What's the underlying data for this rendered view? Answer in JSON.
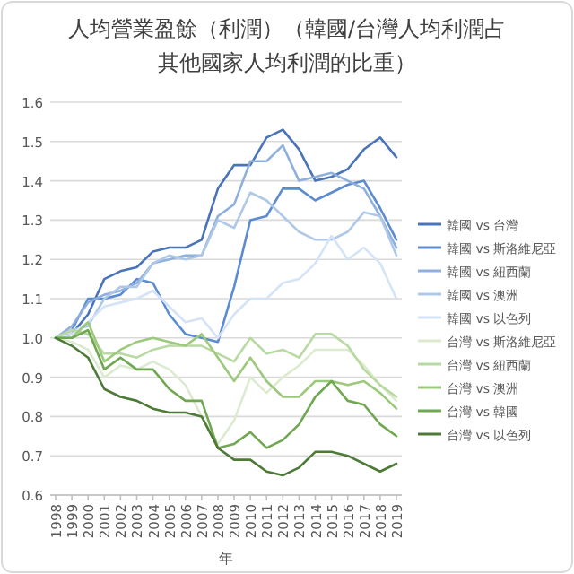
{
  "chart_data": {
    "type": "line",
    "title": "人均營業盈餘（利潤）（韓國/台灣人均利潤占其他國家人均利潤的比重）",
    "xlabel": "年",
    "categories": [
      "1998",
      "1999",
      "2000",
      "2001",
      "2002",
      "2003",
      "2004",
      "2005",
      "2006",
      "2007",
      "2008",
      "2009",
      "2010",
      "2011",
      "2012",
      "2013",
      "2014",
      "2015",
      "2016",
      "2017",
      "2018",
      "2019"
    ],
    "ylim": [
      0.6,
      1.6
    ],
    "yticks": [
      0.6,
      0.7,
      0.8,
      0.9,
      {
        "value": 1,
        "label": "1.0"
      },
      1.1,
      1.2,
      1.3,
      1.4,
      1.5,
      1.6
    ],
    "grid": "y",
    "legend": "right",
    "marker": "none",
    "line_style": "solid",
    "series": [
      {
        "name": "韓國 vs 台灣",
        "color": "#4a74b8",
        "values": [
          1.0,
          1.01,
          1.06,
          1.15,
          1.17,
          1.18,
          1.22,
          1.23,
          1.23,
          1.25,
          1.38,
          1.44,
          1.44,
          1.51,
          1.53,
          1.48,
          1.4,
          1.41,
          1.43,
          1.48,
          1.51,
          1.46
        ]
      },
      {
        "name": "韓國 vs 斯洛維尼亞",
        "color": "#5b8bd0",
        "values": [
          1.0,
          1.02,
          1.1,
          1.1,
          1.11,
          1.15,
          1.14,
          1.06,
          1.01,
          1.0,
          0.99,
          1.13,
          1.3,
          1.31,
          1.38,
          1.38,
          1.35,
          1.37,
          1.39,
          1.4,
          1.33,
          1.25
        ]
      },
      {
        "name": "韓國 vs 紐西蘭",
        "color": "#8fb0dc",
        "values": [
          1.0,
          1.03,
          1.09,
          1.11,
          1.12,
          1.14,
          1.19,
          1.2,
          1.21,
          1.21,
          1.31,
          1.34,
          1.45,
          1.45,
          1.49,
          1.4,
          1.41,
          1.42,
          1.4,
          1.38,
          1.31,
          1.23
        ]
      },
      {
        "name": "韓國 vs 澳洲",
        "color": "#afc8e8",
        "values": [
          1.0,
          1.02,
          1.03,
          1.1,
          1.13,
          1.13,
          1.19,
          1.21,
          1.2,
          1.21,
          1.3,
          1.28,
          1.37,
          1.35,
          1.31,
          1.27,
          1.25,
          1.25,
          1.27,
          1.32,
          1.31,
          1.21
        ]
      },
      {
        "name": "韓國 vs 以色列",
        "color": "#d4e3f5",
        "values": [
          1.0,
          1.01,
          1.04,
          1.08,
          1.09,
          1.1,
          1.12,
          1.08,
          1.04,
          1.05,
          1.0,
          1.06,
          1.1,
          1.1,
          1.14,
          1.15,
          1.19,
          1.26,
          1.2,
          1.23,
          1.19,
          1.1
        ]
      },
      {
        "name": "台灣 vs 斯洛維尼亞",
        "color": "#dcebcf",
        "values": [
          1.0,
          0.99,
          0.97,
          0.9,
          0.93,
          0.92,
          0.94,
          0.92,
          0.88,
          0.8,
          0.73,
          0.79,
          0.9,
          0.86,
          0.9,
          0.93,
          0.97,
          0.97,
          0.97,
          0.93,
          0.88,
          0.84
        ]
      },
      {
        "name": "台灣 vs 紐西蘭",
        "color": "#b9d9a2",
        "values": [
          1.0,
          1.02,
          1.01,
          0.96,
          0.96,
          0.95,
          0.97,
          0.98,
          0.98,
          0.98,
          0.96,
          0.94,
          1.0,
          0.96,
          0.97,
          0.95,
          1.01,
          1.01,
          0.98,
          0.92,
          0.88,
          0.85
        ]
      },
      {
        "name": "台灣 vs 澳洲",
        "color": "#9cc97c",
        "values": [
          1.0,
          1.0,
          1.04,
          0.94,
          0.97,
          0.99,
          1.0,
          0.99,
          0.98,
          1.01,
          0.95,
          0.89,
          0.95,
          0.89,
          0.85,
          0.85,
          0.89,
          0.89,
          0.88,
          0.89,
          0.86,
          0.82
        ]
      },
      {
        "name": "台灣 vs 韓國",
        "color": "#6fa851",
        "values": [
          1.0,
          1.0,
          1.02,
          0.92,
          0.95,
          0.92,
          0.92,
          0.87,
          0.84,
          0.84,
          0.72,
          0.73,
          0.76,
          0.72,
          0.74,
          0.78,
          0.85,
          0.89,
          0.84,
          0.83,
          0.78,
          0.75
        ]
      },
      {
        "name": "台灣 vs 以色列",
        "color": "#4e7a38",
        "values": [
          1.0,
          0.98,
          0.95,
          0.87,
          0.85,
          0.84,
          0.82,
          0.81,
          0.81,
          0.8,
          0.72,
          0.69,
          0.69,
          0.66,
          0.65,
          0.67,
          0.71,
          0.71,
          0.7,
          0.68,
          0.66,
          0.68
        ]
      }
    ]
  }
}
